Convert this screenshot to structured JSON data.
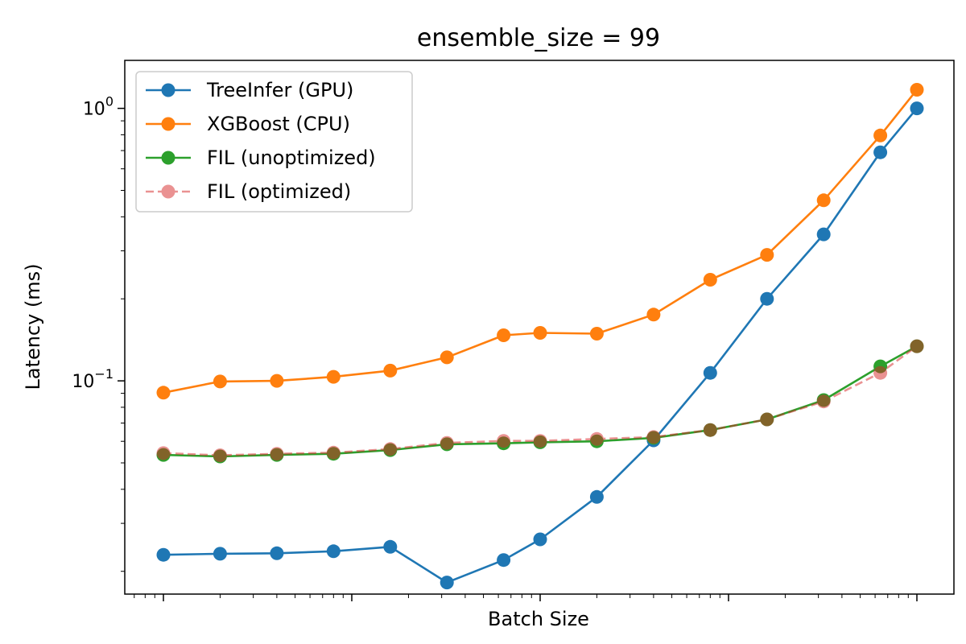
{
  "chart_data": {
    "type": "line",
    "title": "ensemble_size = 99",
    "xlabel": "Batch Size",
    "ylabel": "Latency (ms)",
    "xscale": "log",
    "yscale": "log",
    "ylim": [
      0.0165,
      1.5
    ],
    "grid": false,
    "legend_position": "top-left",
    "x": [
      1,
      2,
      4,
      8,
      16,
      32,
      64,
      100,
      200,
      400,
      800,
      1600,
      3200,
      6400,
      10000
    ],
    "y_ticks": [
      {
        "value": 0.1,
        "base": "10",
        "exp": "−1"
      },
      {
        "value": 1,
        "base": "10",
        "exp": "0"
      }
    ],
    "series": [
      {
        "name": "TreeInfer (GPU)",
        "color": "#1f77b4",
        "style": "solid",
        "marker": "circle",
        "values": [
          0.023,
          0.0232,
          0.0233,
          0.0237,
          0.0246,
          0.0182,
          0.022,
          0.0262,
          0.0375,
          0.0605,
          0.107,
          0.2,
          0.345,
          0.69,
          1.0
        ]
      },
      {
        "name": "XGBoost (CPU)",
        "color": "#ff7f0e",
        "style": "solid",
        "marker": "circle",
        "values": [
          0.0905,
          0.0995,
          0.1,
          0.1035,
          0.109,
          0.122,
          0.147,
          0.15,
          0.149,
          0.175,
          0.235,
          0.29,
          0.46,
          0.795,
          1.17
        ]
      },
      {
        "name": "FIL (unoptimized)",
        "color": "#2ca02c",
        "style": "solid",
        "marker": "circle",
        "values": [
          0.0535,
          0.0528,
          0.0535,
          0.054,
          0.0557,
          0.0585,
          0.059,
          0.0595,
          0.06,
          0.0618,
          0.066,
          0.0722,
          0.085,
          0.113,
          0.134
        ]
      },
      {
        "name": "FIL (optimized)",
        "color": "#d62728",
        "style": "dashed",
        "marker": "circle",
        "alpha": 0.5,
        "values": [
          0.0543,
          0.0533,
          0.054,
          0.0545,
          0.0562,
          0.0592,
          0.0602,
          0.0602,
          0.0612,
          0.0622,
          0.066,
          0.0722,
          0.084,
          0.107,
          0.134
        ]
      }
    ]
  }
}
